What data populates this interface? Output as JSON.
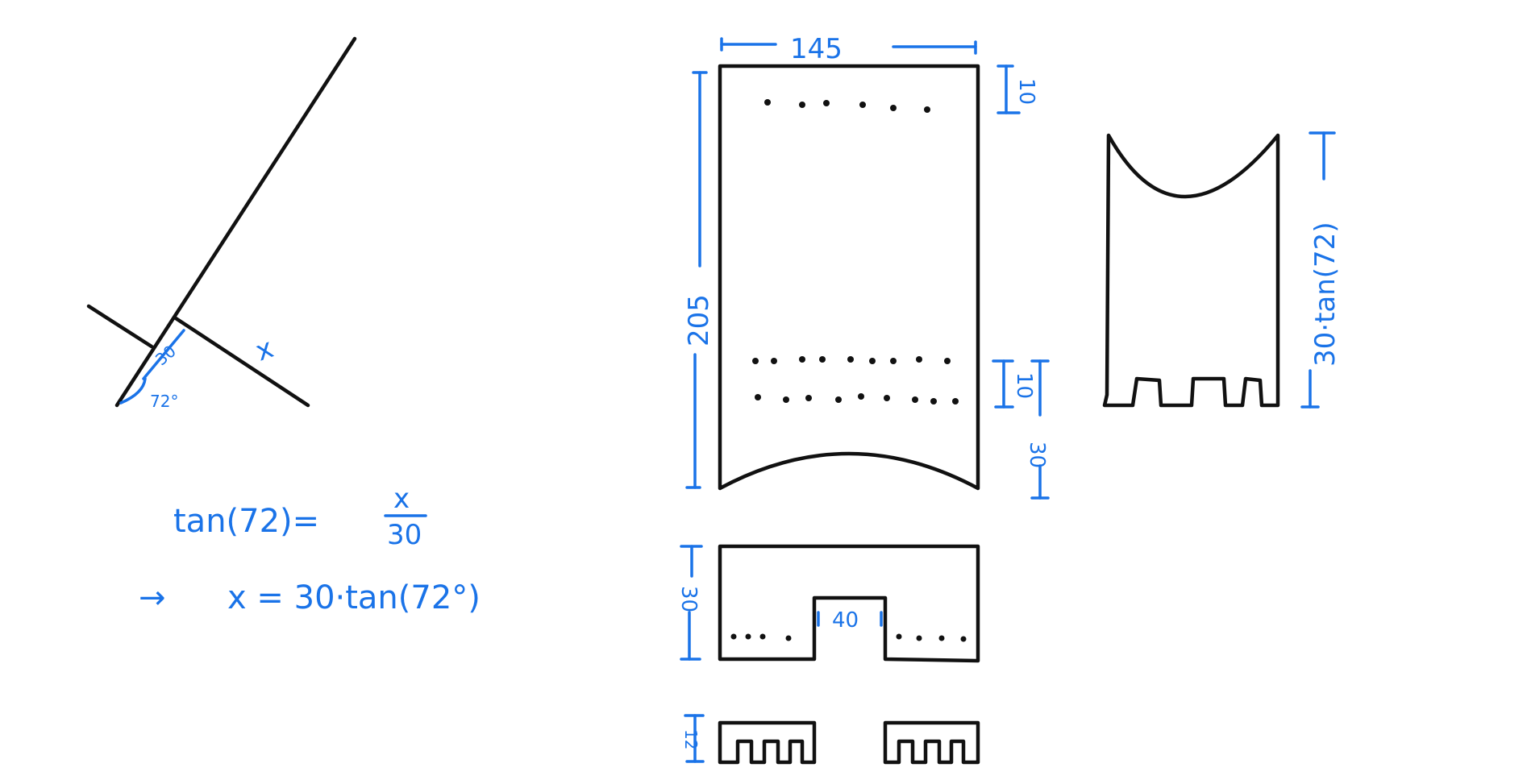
{
  "labels": {
    "angle_opposite": "x",
    "angle_adjacent": "30",
    "angle_value": "72°",
    "equation_1": "tan(72)=",
    "fraction_numerator": "x",
    "fraction_denominator": "30",
    "arrow_symbol": "→",
    "equation_2": "x = 30·tan(72°)",
    "width_top": "145",
    "height_main": "205",
    "top_margin": "10",
    "bottom_margin": "10",
    "bottom_depth": "30",
    "side_height": "30·tan(72)",
    "base_height": "30",
    "notch_width": "40",
    "tab_height": "12"
  },
  "colors": {
    "ink": "#111111",
    "annotation": "#1a73e8"
  }
}
